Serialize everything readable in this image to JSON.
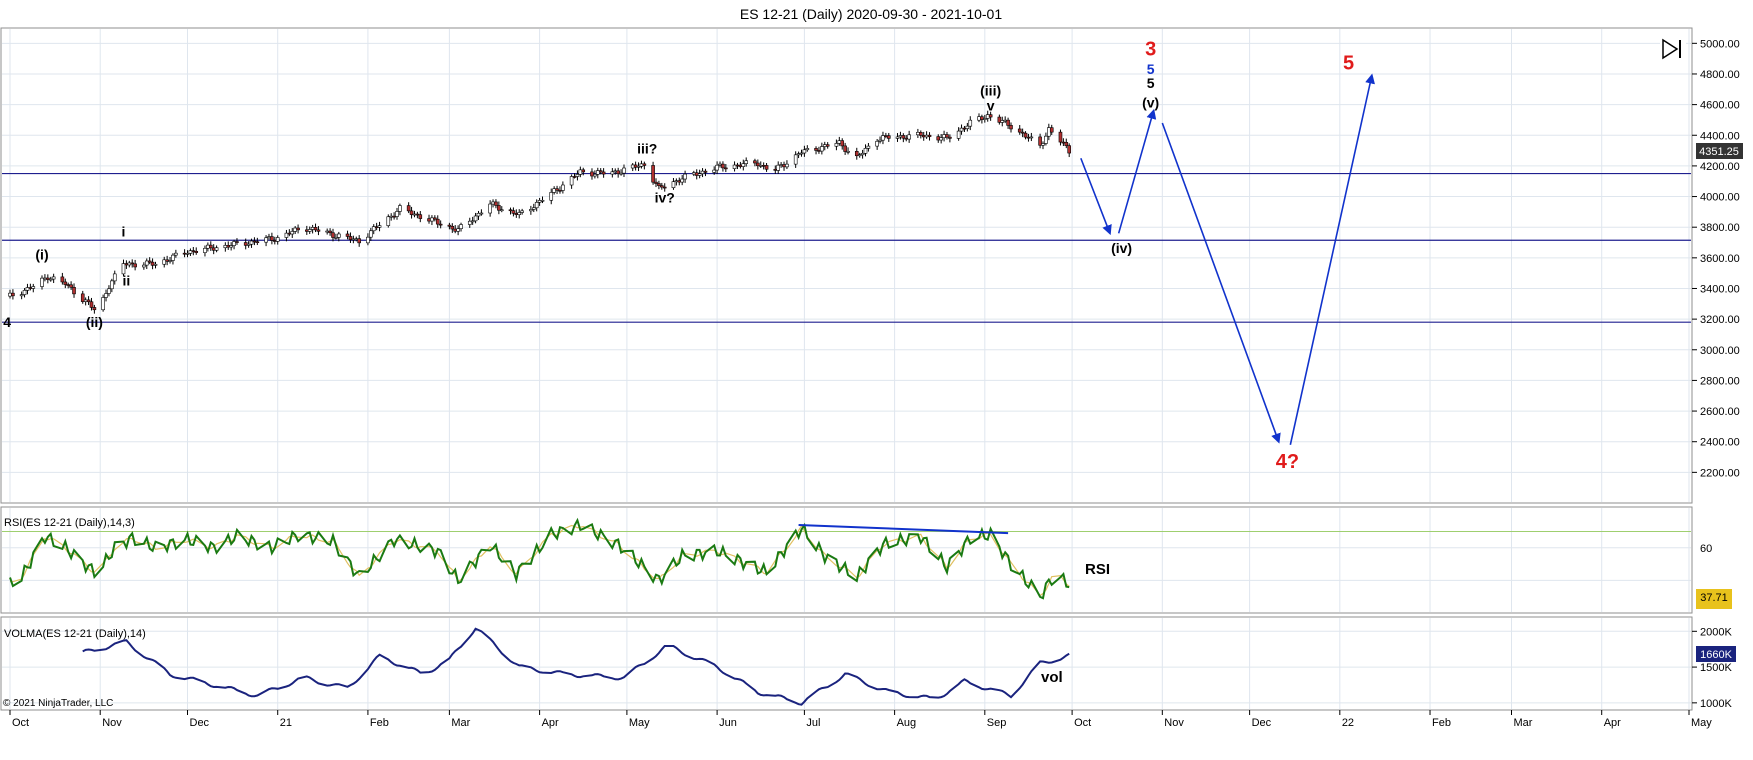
{
  "window": {
    "title": "ES 12-21 (Daily)  2020-09-30 - 2021-10-01",
    "copyright": "© 2021 NinjaTrader, LLC"
  },
  "toolbar": {
    "icon": "play-pause-icon"
  },
  "colors": {
    "grid": "#dfe6ee",
    "panel_border": "#8f8f8f",
    "hline": "#1f1f8f",
    "rsi_line": "#1a7a12",
    "rsi_signal": "#e0c060",
    "rsi_level": "#9fcf6f",
    "volma_line": "#1a237e",
    "arrow": "#1133cc",
    "red_label": "#e01b1b",
    "blue_label": "#1133cc",
    "price_marker_bg": "#333333",
    "rsi_marker_bg": "#e8c21c"
  },
  "chart_data": [
    {
      "type": "candlestick",
      "panel": "price",
      "title": "ES 12-21 (Daily)  2020-09-30 - 2021-10-01",
      "symbol": "ES 12-21",
      "interval": "Daily",
      "date_range": [
        "2020-09-30",
        "2021-10-01"
      ],
      "ylim": [
        2000,
        5100
      ],
      "y_ticks": [
        "5000.00",
        "4800.00",
        "4600.00",
        "4400.00",
        "4200.00",
        "4000.00",
        "3800.00",
        "3600.00",
        "3400.00",
        "3200.00",
        "3000.00",
        "2800.00",
        "2600.00",
        "2400.00",
        "2200.00"
      ],
      "last_price_label": "4351.25",
      "last_price": 4351.25,
      "horizontal_lines": [
        4150,
        3715,
        3180
      ],
      "close_series": [
        {
          "date": "2020-10-01",
          "v": 3350
        },
        {
          "date": "2020-10-10",
          "v": 3420
        },
        {
          "date": "2020-10-14",
          "v": 3480
        },
        {
          "date": "2020-10-20",
          "v": 3430
        },
        {
          "date": "2020-10-28",
          "v": 3300
        },
        {
          "date": "2020-10-31",
          "v": 3240
        },
        {
          "date": "2020-11-04",
          "v": 3420
        },
        {
          "date": "2020-11-09",
          "v": 3560
        },
        {
          "date": "2020-11-20",
          "v": 3560
        },
        {
          "date": "2020-12-01",
          "v": 3640
        },
        {
          "date": "2020-12-15",
          "v": 3680
        },
        {
          "date": "2021-01-01",
          "v": 3730
        },
        {
          "date": "2021-01-10",
          "v": 3800
        },
        {
          "date": "2021-01-29",
          "v": 3710
        },
        {
          "date": "2021-02-12",
          "v": 3920
        },
        {
          "date": "2021-03-04",
          "v": 3780
        },
        {
          "date": "2021-03-15",
          "v": 3950
        },
        {
          "date": "2021-03-25",
          "v": 3880
        },
        {
          "date": "2021-04-05",
          "v": 4020
        },
        {
          "date": "2021-04-15",
          "v": 4160
        },
        {
          "date": "2021-04-25",
          "v": 4150
        },
        {
          "date": "2021-05-07",
          "v": 4210
        },
        {
          "date": "2021-05-12",
          "v": 4050
        },
        {
          "date": "2021-05-20",
          "v": 4120
        },
        {
          "date": "2021-06-01",
          "v": 4190
        },
        {
          "date": "2021-06-15",
          "v": 4220
        },
        {
          "date": "2021-06-20",
          "v": 4160
        },
        {
          "date": "2021-06-30",
          "v": 4290
        },
        {
          "date": "2021-07-13",
          "v": 4350
        },
        {
          "date": "2021-07-19",
          "v": 4250
        },
        {
          "date": "2021-07-26",
          "v": 4380
        },
        {
          "date": "2021-08-10",
          "v": 4400
        },
        {
          "date": "2021-08-19",
          "v": 4380
        },
        {
          "date": "2021-08-27",
          "v": 4480
        },
        {
          "date": "2021-09-02",
          "v": 4530
        },
        {
          "date": "2021-09-10",
          "v": 4460
        },
        {
          "date": "2021-09-20",
          "v": 4330
        },
        {
          "date": "2021-09-23",
          "v": 4440
        },
        {
          "date": "2021-09-30",
          "v": 4300
        }
      ],
      "wave_labels": [
        {
          "text": "4",
          "date": "2020-09-30",
          "price": 3150,
          "color": "black"
        },
        {
          "text": "(i)",
          "date": "2020-10-12",
          "price": 3590,
          "color": "black"
        },
        {
          "text": "(ii)",
          "date": "2020-10-30",
          "price": 3150,
          "color": "black"
        },
        {
          "text": "i",
          "date": "2020-11-09",
          "price": 3740,
          "color": "black"
        },
        {
          "text": "ii",
          "date": "2020-11-10",
          "price": 3420,
          "color": "black"
        },
        {
          "text": "iii?",
          "date": "2021-05-08",
          "price": 4280,
          "color": "black"
        },
        {
          "text": "iv?",
          "date": "2021-05-14",
          "price": 3960,
          "color": "black"
        },
        {
          "text": "(iii)",
          "date": "2021-09-03",
          "price": 4660,
          "color": "black"
        },
        {
          "text": "v",
          "date": "2021-09-03",
          "price": 4560,
          "color": "black"
        },
        {
          "text": "(iv)",
          "date": "2021-10-18",
          "price": 3630,
          "color": "black"
        },
        {
          "text": "3",
          "date": "2021-10-28",
          "price": 4920,
          "color": "red"
        },
        {
          "text": "5",
          "date": "2021-10-28",
          "price": 4800,
          "color": "blue"
        },
        {
          "text": "5",
          "date": "2021-10-28",
          "price": 4710,
          "color": "black"
        },
        {
          "text": "(v)",
          "date": "2021-10-28",
          "price": 4580,
          "color": "black"
        },
        {
          "text": "4?",
          "date": "2021-12-14",
          "price": 2230,
          "color": "red"
        },
        {
          "text": "5",
          "date": "2022-01-04",
          "price": 4830,
          "color": "red"
        }
      ],
      "projection_arrows": [
        {
          "from": {
            "date": "2021-10-04",
            "price": 4250
          },
          "to": {
            "date": "2021-10-14",
            "price": 3760
          }
        },
        {
          "from": {
            "date": "2021-10-17",
            "price": 3760
          },
          "to": {
            "date": "2021-10-29",
            "price": 4560
          }
        },
        {
          "from": {
            "date": "2021-11-01",
            "price": 4480
          },
          "to": {
            "date": "2021-12-11",
            "price": 2400
          }
        },
        {
          "from": {
            "date": "2021-12-15",
            "price": 2380
          },
          "to": {
            "date": "2022-01-12",
            "price": 4790
          }
        }
      ]
    },
    {
      "type": "line",
      "panel": "rsi",
      "title": "RSI(ES 12-21 (Daily),14,3)",
      "annotation": "RSI",
      "ylim": [
        20,
        85
      ],
      "y_ticks": [
        "60"
      ],
      "level_line": 70,
      "last_value_label": "37.71",
      "last_value": 37.71,
      "series": [
        {
          "name": "RSI",
          "values": [
            {
              "date": "2020-10-01",
              "v": 38
            },
            {
              "date": "2020-10-05",
              "v": 42
            },
            {
              "date": "2020-10-13",
              "v": 67
            },
            {
              "date": "2020-10-20",
              "v": 60
            },
            {
              "date": "2020-10-28",
              "v": 48
            },
            {
              "date": "2020-10-31",
              "v": 44
            },
            {
              "date": "2020-11-06",
              "v": 60
            },
            {
              "date": "2020-11-12",
              "v": 66
            },
            {
              "date": "2020-11-20",
              "v": 60
            },
            {
              "date": "2020-12-01",
              "v": 65
            },
            {
              "date": "2020-12-10",
              "v": 60
            },
            {
              "date": "2020-12-18",
              "v": 67
            },
            {
              "date": "2020-12-30",
              "v": 60
            },
            {
              "date": "2021-01-08",
              "v": 68
            },
            {
              "date": "2021-01-20",
              "v": 64
            },
            {
              "date": "2021-01-29",
              "v": 42
            },
            {
              "date": "2021-02-10",
              "v": 65
            },
            {
              "date": "2021-02-25",
              "v": 58
            },
            {
              "date": "2021-03-04",
              "v": 40
            },
            {
              "date": "2021-03-15",
              "v": 62
            },
            {
              "date": "2021-03-24",
              "v": 44
            },
            {
              "date": "2021-04-05",
              "v": 68
            },
            {
              "date": "2021-04-15",
              "v": 74
            },
            {
              "date": "2021-04-28",
              "v": 62
            },
            {
              "date": "2021-05-12",
              "v": 40
            },
            {
              "date": "2021-05-20",
              "v": 55
            },
            {
              "date": "2021-06-01",
              "v": 58
            },
            {
              "date": "2021-06-18",
              "v": 45
            },
            {
              "date": "2021-06-30",
              "v": 72
            },
            {
              "date": "2021-07-08",
              "v": 55
            },
            {
              "date": "2021-07-19",
              "v": 42
            },
            {
              "date": "2021-07-28",
              "v": 62
            },
            {
              "date": "2021-08-10",
              "v": 67
            },
            {
              "date": "2021-08-19",
              "v": 48
            },
            {
              "date": "2021-08-27",
              "v": 66
            },
            {
              "date": "2021-09-03",
              "v": 68
            },
            {
              "date": "2021-09-10",
              "v": 50
            },
            {
              "date": "2021-09-20",
              "v": 30
            },
            {
              "date": "2021-09-25",
              "v": 44
            },
            {
              "date": "2021-09-30",
              "v": 37.71
            }
          ]
        }
      ],
      "trendline": {
        "from": {
          "date": "2021-06-29",
          "v": 74
        },
        "to": {
          "date": "2021-09-09",
          "v": 69
        }
      }
    },
    {
      "type": "line",
      "panel": "volma",
      "title": "VOLMA(ES 12-21 (Daily),14)",
      "annotation": "vol",
      "ylim": [
        900000,
        2200000
      ],
      "y_ticks": [
        "2000K",
        "1500K",
        "1000K"
      ],
      "last_value_label": "1660K",
      "last_value": 1660000,
      "series": [
        {
          "name": "VOLMA",
          "values": [
            {
              "date": "2020-10-26",
              "v": 1700000
            },
            {
              "date": "2020-11-10",
              "v": 1850000
            },
            {
              "date": "2020-11-25",
              "v": 1400000
            },
            {
              "date": "2020-12-10",
              "v": 1250000
            },
            {
              "date": "2020-12-25",
              "v": 1100000
            },
            {
              "date": "2021-01-10",
              "v": 1350000
            },
            {
              "date": "2021-01-25",
              "v": 1200000
            },
            {
              "date": "2021-02-05",
              "v": 1650000
            },
            {
              "date": "2021-02-20",
              "v": 1400000
            },
            {
              "date": "2021-03-01",
              "v": 1600000
            },
            {
              "date": "2021-03-10",
              "v": 2050000
            },
            {
              "date": "2021-03-25",
              "v": 1500000
            },
            {
              "date": "2021-04-10",
              "v": 1400000
            },
            {
              "date": "2021-04-30",
              "v": 1350000
            },
            {
              "date": "2021-05-15",
              "v": 1800000
            },
            {
              "date": "2021-06-01",
              "v": 1500000
            },
            {
              "date": "2021-06-15",
              "v": 1150000
            },
            {
              "date": "2021-06-30",
              "v": 1000000
            },
            {
              "date": "2021-07-15",
              "v": 1400000
            },
            {
              "date": "2021-07-30",
              "v": 1150000
            },
            {
              "date": "2021-08-15",
              "v": 1050000
            },
            {
              "date": "2021-08-25",
              "v": 1300000
            },
            {
              "date": "2021-09-10",
              "v": 1100000
            },
            {
              "date": "2021-09-20",
              "v": 1550000
            },
            {
              "date": "2021-09-30",
              "v": 1660000
            }
          ]
        }
      ]
    }
  ],
  "x_axis": {
    "ticks": [
      {
        "label": "Oct",
        "date": "2020-10-01"
      },
      {
        "label": "Nov",
        "date": "2020-11-01"
      },
      {
        "label": "Dec",
        "date": "2020-12-01"
      },
      {
        "label": "21",
        "date": "2021-01-01"
      },
      {
        "label": "Feb",
        "date": "2021-02-01"
      },
      {
        "label": "Mar",
        "date": "2021-03-01"
      },
      {
        "label": "Apr",
        "date": "2021-04-01"
      },
      {
        "label": "May",
        "date": "2021-05-01"
      },
      {
        "label": "Jun",
        "date": "2021-06-01"
      },
      {
        "label": "Jul",
        "date": "2021-07-01"
      },
      {
        "label": "Aug",
        "date": "2021-08-01"
      },
      {
        "label": "Sep",
        "date": "2021-09-01"
      },
      {
        "label": "Oct",
        "date": "2021-10-01"
      },
      {
        "label": "Nov",
        "date": "2021-11-01"
      },
      {
        "label": "Dec",
        "date": "2021-12-01"
      },
      {
        "label": "22",
        "date": "2022-01-01"
      },
      {
        "label": "Feb",
        "date": "2022-02-01"
      },
      {
        "label": "Mar",
        "date": "2022-03-01"
      },
      {
        "label": "Apr",
        "date": "2022-04-01"
      },
      {
        "label": "May",
        "date": "2022-05-01"
      }
    ]
  }
}
